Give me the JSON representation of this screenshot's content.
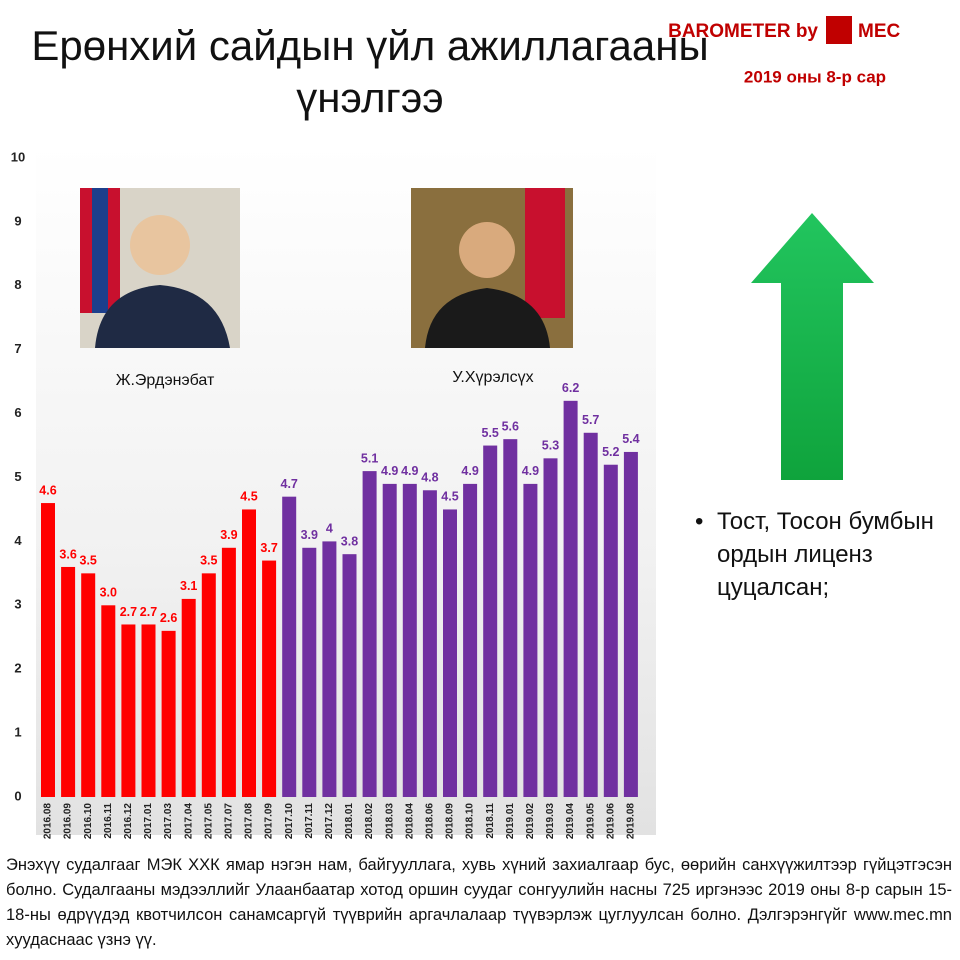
{
  "chart_data": {
    "type": "bar",
    "title": "Ерөнхий сайдын үйл ажиллагааны үнэлгээ",
    "logo": "BAROMETER by",
    "logo_brand": "MEC",
    "subtitle": "2019 оны 8-р сар",
    "annotation": "Тост, Тосон бумбын ордын лиценз цуцалсан;",
    "footnote": "Энэхүү судалгааг МЭК ХХК ямар нэгэн нам, байгууллага, хувь хүний захиалгаар бус, өөрийн санхүүжилтээр гүйцэтгэсэн болно. Судалгааны мэдээллийг Улаанбаатар хотод оршин суудаг сонгуулийн насны 725 иргэнээс 2019 оны 8-р сарын 15-18-ны өдрүүдэд квотчилсон санамсаргүй түүврийн аргачлалаар түүвэрлэж цуглуулсан болно. Дэлгэрэнгүйг www.mec.mn хуудаснаас үзнэ үү.",
    "categories": [
      "2016.08",
      "2016.09",
      "2016.10",
      "2016.11",
      "2016.12",
      "2017.01",
      "2017.03",
      "2017.04",
      "2017.05",
      "2017.07",
      "2017.08",
      "2017.09",
      "2017.10",
      "2017.11",
      "2017.12",
      "2018.01",
      "2018.02",
      "2018.03",
      "2018.04",
      "2018.06",
      "2018.09",
      "2018.10",
      "2018.11",
      "2019.01",
      "2019.02",
      "2019.03",
      "2019.04",
      "2019.05",
      "2019.06",
      "2019.08"
    ],
    "series": [
      {
        "name": "Ж.Эрдэнэбат",
        "color": "#ff0000",
        "values": [
          4.6,
          3.6,
          3.5,
          3.0,
          2.7,
          2.7,
          2.6,
          3.1,
          3.5,
          3.9,
          4.5,
          3.7,
          null,
          null,
          null,
          null,
          null,
          null,
          null,
          null,
          null,
          null,
          null,
          null,
          null,
          null,
          null,
          null,
          null,
          null
        ],
        "value_labels": [
          "4.6",
          "3.6",
          "3.5",
          "3.0",
          "2.7",
          "2.7",
          "2.6",
          "3.1",
          "3.5",
          "3.9",
          "4.5",
          "3.7",
          null,
          null,
          null,
          null,
          null,
          null,
          null,
          null,
          null,
          null,
          null,
          null,
          null,
          null,
          null,
          null,
          null,
          null
        ]
      },
      {
        "name": "У.Хүрэлсүх",
        "color": "#7030a0",
        "values": [
          null,
          null,
          null,
          null,
          null,
          null,
          null,
          null,
          null,
          null,
          null,
          null,
          4.7,
          3.9,
          4,
          3.8,
          5.1,
          4.9,
          4.9,
          4.8,
          4.5,
          4.9,
          5.5,
          5.6,
          4.9,
          5.3,
          6.2,
          5.7,
          5.2,
          5.4
        ],
        "value_labels": [
          null,
          null,
          null,
          null,
          null,
          null,
          null,
          null,
          null,
          null,
          null,
          null,
          "4.7",
          "3.9",
          "4",
          "3.8",
          "5.1",
          "4.9",
          "4.9",
          "4.8",
          "4.5",
          "4.9",
          "5.5",
          "5.6",
          "4.9",
          "5.3",
          "6.2",
          "5.7",
          "5.2",
          "5.4"
        ]
      }
    ],
    "ylim": [
      0,
      10
    ],
    "yticks": [
      0,
      1,
      2,
      3,
      4,
      5,
      6,
      7,
      8,
      9,
      10
    ]
  }
}
